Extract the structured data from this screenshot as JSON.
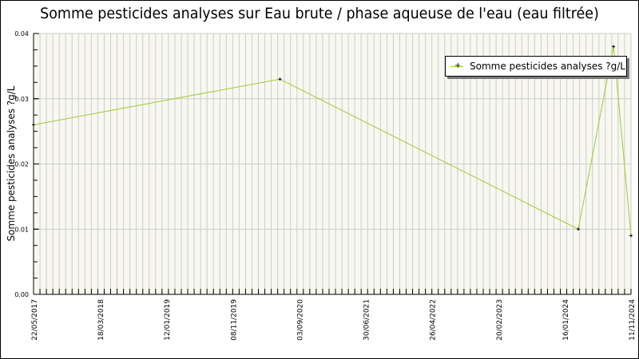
{
  "chart_data": {
    "type": "line",
    "title": "Somme pesticides analyses sur Eau brute / phase aqueuse de l'eau (eau filtrée)",
    "xlabel": "",
    "ylabel": "Somme pesticides analyses ?g/L",
    "ylim": [
      0.0,
      0.04
    ],
    "y_ticks": [
      "0.00",
      "0.01",
      "0.02",
      "0.03",
      "0.04"
    ],
    "x_tick_labels": [
      "22/05/2017",
      "18/03/2018",
      "12/01/2019",
      "08/11/2019",
      "03/09/2020",
      "30/06/2021",
      "26/04/2022",
      "20/02/2023",
      "16/01/2024",
      "11/11/2024"
    ],
    "xlim": [
      "22/05/2017",
      "11/11/2024"
    ],
    "grid": true,
    "legend_position": "upper right",
    "series": [
      {
        "name": "Somme pesticides analyses ?g/L",
        "color": "#9acd32",
        "points": [
          {
            "date": "22/05/2017",
            "value": 0.026
          },
          {
            "date": "21/06/2020",
            "value": 0.033
          },
          {
            "date": "15/03/2024",
            "value": 0.01
          },
          {
            "date": "23/08/2024",
            "value": 0.038
          },
          {
            "date": "11/11/2024",
            "value": 0.009
          }
        ]
      }
    ]
  },
  "legend": {
    "label": "Somme pesticides analyses ?g/L"
  },
  "colors": {
    "plot_bg": "#f8f8f0",
    "grid": "#cccccc",
    "series": "#9acd32",
    "marker": "#000000"
  }
}
